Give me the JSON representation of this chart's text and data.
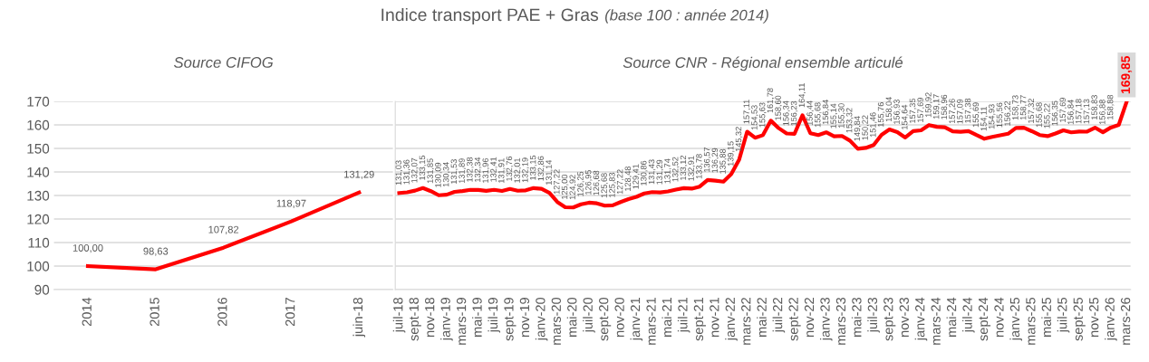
{
  "chart_data": [
    {
      "type": "line",
      "title": "Source CIFOG",
      "annotations": [
        "Indice transport PAE + Gras",
        "(base 100 : année 2014)"
      ],
      "categories": [
        "2014",
        "2015",
        "2016",
        "2017",
        "juin-18"
      ],
      "series": [
        {
          "color": "#ff0000",
          "values": [
            100.0,
            98.63,
            107.82,
            118.97,
            131.29
          ],
          "value_labels": [
            "100,00",
            "98,63",
            "107,82",
            "118,97",
            "131,29"
          ]
        }
      ],
      "ylim": [
        90,
        170
      ],
      "yticks": [
        90,
        100,
        110,
        120,
        130,
        140,
        150,
        160,
        170
      ],
      "grid": "y",
      "marker": "none",
      "line_style": "solid"
    },
    {
      "type": "line",
      "title": "Source CNR - Régional ensemble articulé",
      "categories": [
        "juil-18",
        null,
        "sept-18",
        null,
        "nov-18",
        null,
        "janv-19",
        null,
        "mars-19",
        null,
        "mai-19",
        null,
        "juil-19",
        null,
        "sept-19",
        null,
        "nov-19",
        null,
        "janv-20",
        null,
        "mars-20",
        null,
        "mai-20",
        null,
        "juil-20",
        null,
        "sept-20",
        null,
        "nov-20",
        null,
        "janv-21",
        null,
        "mars-21",
        null,
        "mai-21",
        null,
        "juil-21",
        null,
        "sept-21",
        null,
        "nov-21",
        null,
        "janv-22",
        null,
        "mars-22",
        null,
        "mai-22",
        null,
        "juil-22",
        null,
        "sept-22",
        null,
        "nov-22",
        null,
        "janv-23",
        null,
        "mars-23",
        null,
        "mai-23",
        null,
        "juil-23",
        null,
        "sept-23",
        null,
        "nov-23",
        null,
        "janv-24",
        null,
        "mars-24",
        null,
        "mai-24",
        null,
        "juil-24",
        null,
        "sept-24",
        null,
        "nov-24",
        null,
        "janv-25",
        null,
        "mars-25",
        null,
        "mai-25",
        null,
        "juil-25",
        null,
        "sept-25",
        null,
        "nov-25",
        null,
        "janv-26",
        null,
        "mars-26"
      ],
      "series": [
        {
          "color": "#ff0000",
          "values": [
            131.03,
            131.36,
            132.07,
            133.15,
            131.85,
            130.09,
            130.34,
            131.53,
            131.89,
            132.38,
            132.34,
            131.96,
            132.41,
            131.91,
            132.76,
            132.01,
            132.19,
            133.15,
            132.86,
            131.14,
            127.22,
            125.0,
            124.92,
            126.25,
            126.95,
            126.68,
            125.68,
            125.83,
            127.22,
            128.48,
            129.41,
            130.86,
            131.43,
            131.29,
            131.74,
            132.52,
            133.12,
            132.91,
            133.78,
            136.57,
            136.29,
            135.88,
            139.15,
            145.32,
            157.11,
            154.53,
            155.63,
            161.78,
            158.6,
            156.34,
            156.23,
            164.11,
            156.44,
            155.68,
            156.84,
            155.14,
            155.3,
            153.32,
            149.84,
            150.22,
            151.46,
            155.76,
            158.04,
            156.93,
            154.64,
            157.35,
            157.69,
            159.92,
            159.17,
            158.96,
            157.26,
            157.09,
            157.38,
            155.69,
            154.11,
            154.93,
            155.56,
            156.22,
            158.73,
            158.77,
            157.32,
            155.68,
            155.22,
            156.35,
            157.69,
            156.84,
            157.18,
            157.13,
            158.83,
            156.88,
            158.88,
            160,
            169.85
          ],
          "value_labels": [
            "131,03",
            "131,36",
            "132,07",
            "133,15",
            "131,85",
            "130,09",
            "130,34",
            "131,53",
            "131,89",
            "132,38",
            "132,34",
            "131,96",
            "132,41",
            "131,91",
            "132,76",
            "132,01",
            "132,19",
            "133,15",
            "132,86",
            "131,14",
            "127,22",
            "125,00",
            "124,92",
            "126,25",
            "126,95",
            "126,68",
            "125,68",
            "125,83",
            "127,22",
            "128,48",
            "129,41",
            "130,86",
            "131,43",
            "131,29",
            "131,74",
            "132,52",
            "133,12",
            "132,91",
            "133,78",
            "136,57",
            "136,29",
            "135,88",
            "139,15",
            "145,32",
            "157,11",
            "154,53",
            "155,63",
            "161,78",
            "158,60",
            "156,34",
            "156,23",
            "164,11",
            "156,44",
            "155,68",
            "156,84",
            "155,14",
            "155,30",
            "153,32",
            "149,84",
            "150,22",
            "151,46",
            "155,76",
            "158,04",
            "156,93",
            "154,64",
            "157,35",
            "157,69",
            "159,92",
            "159,17",
            "158,96",
            "157,26",
            "157,09",
            "157,38",
            "155,69",
            "154,11",
            "154,93",
            "155,56",
            "156,22",
            "158,73",
            "158,77",
            "157,32",
            "155,68",
            "155,22",
            "156,35",
            "157,69",
            "156,84",
            "157,18",
            "157,13",
            "158,83",
            "156,88",
            "158,88",
            null,
            "169,85"
          ]
        }
      ],
      "ylim": [
        90,
        170
      ],
      "yticks": [
        90,
        100,
        110,
        120,
        130,
        140,
        150,
        160,
        170
      ],
      "grid": "y",
      "tick_labels": "x",
      "marker": "none",
      "line_style": "solid"
    }
  ]
}
